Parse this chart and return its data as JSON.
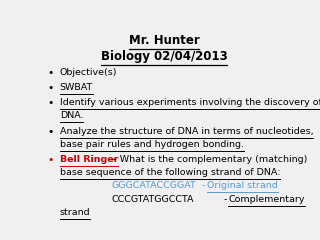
{
  "background_color": "#f0f0f0",
  "title_line1": "Mr. Hunter",
  "title_line2": "Biology 02/04/2013",
  "title_color": "#000000",
  "bullet_color_default": "#000000",
  "bullet_color_bell": "#cc0000",
  "strand1_text": "GGGCATACCGGAT",
  "strand1_dash": " - ",
  "strand1_label": "Original strand",
  "strand1_color": "#5b9bd5",
  "strand2_text": "CCCGTATGGCCTA",
  "strand2_dash": "          - ",
  "strand2_label": "Complementary",
  "strand2_label2": "strand",
  "strand2_color": "#000000",
  "strand_label_color": "#000000"
}
